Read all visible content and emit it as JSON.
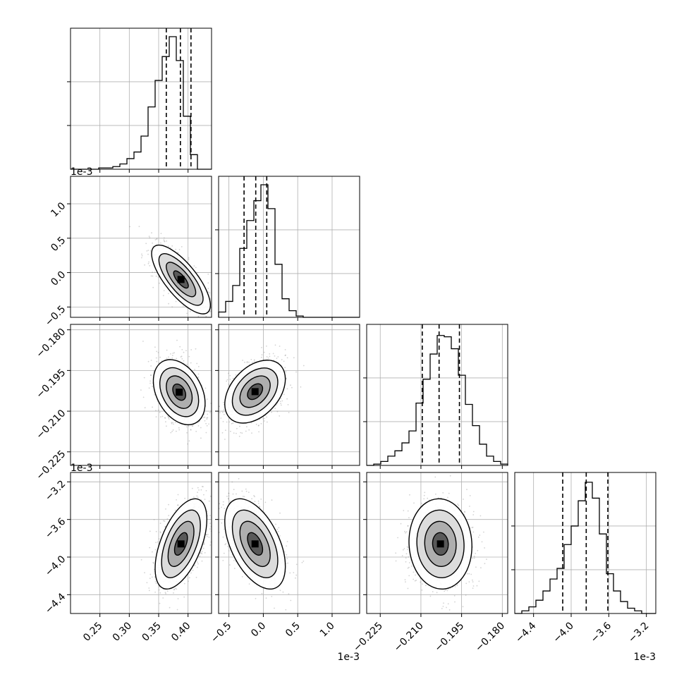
{
  "chart_data": {
    "type": "corner",
    "n_params": 4,
    "axis_offset_labels": [
      "",
      "1e-3",
      "",
      "1e-3"
    ],
    "ranges": [
      [
        0.2,
        0.44
      ],
      [
        -0.65,
        1.4
      ],
      [
        -0.23,
        -0.178
      ],
      [
        -4.6,
        -3.1
      ]
    ],
    "ticks": [
      {
        "values": [
          0.25,
          0.3,
          0.35,
          0.4
        ],
        "labels": [
          "0.25",
          "0.30",
          "0.35",
          "0.40"
        ]
      },
      {
        "values": [
          -0.5,
          0.0,
          0.5,
          1.0
        ],
        "labels": [
          "−0.5",
          "0.0",
          "0.5",
          "1.0"
        ]
      },
      {
        "values": [
          -0.225,
          -0.21,
          -0.195,
          -0.18
        ],
        "labels": [
          "−0.225",
          "−0.210",
          "−0.195",
          "−0.180"
        ]
      },
      {
        "values": [
          -4.4,
          -4.0,
          -3.6,
          -3.2
        ],
        "labels": [
          "−4.4",
          "−4.0",
          "−3.6",
          "−3.2"
        ]
      }
    ],
    "quantiles": [
      [
        0.363,
        0.387,
        0.405
      ],
      [
        -0.28,
        -0.11,
        0.05
      ],
      [
        -0.2095,
        -0.2033,
        -0.1958
      ],
      [
        -4.09,
        -3.84,
        -3.61
      ]
    ],
    "histograms": [
      [
        0,
        0,
        0,
        0,
        0.01,
        0.01,
        0.02,
        0.04,
        0.08,
        0.13,
        0.25,
        0.47,
        0.67,
        0.85,
        1.0,
        0.82,
        0.4,
        0.11,
        0,
        0
      ],
      [
        0.04,
        0.12,
        0.24,
        0.52,
        0.73,
        0.88,
        1.0,
        0.82,
        0.4,
        0.14,
        0.05,
        0.01,
        0,
        0,
        0,
        0,
        0,
        0,
        0,
        0
      ],
      [
        0,
        0.01,
        0.03,
        0.07,
        0.11,
        0.17,
        0.26,
        0.47,
        0.65,
        0.84,
        0.98,
        0.97,
        0.88,
        0.68,
        0.46,
        0.3,
        0.16,
        0.07,
        0.03,
        0.01
      ],
      [
        0,
        0.02,
        0.05,
        0.1,
        0.17,
        0.26,
        0.34,
        0.52,
        0.66,
        0.85,
        0.99,
        0.87,
        0.6,
        0.3,
        0.17,
        0.09,
        0.04,
        0.02,
        0,
        0
      ]
    ],
    "scatter_pairs": [
      {
        "row": 1,
        "col": 0,
        "mean": [
          0.388,
          -0.1
        ],
        "sd": [
          0.025,
          0.25
        ],
        "rho": -0.75
      },
      {
        "row": 2,
        "col": 0,
        "mean": [
          0.385,
          -0.203
        ],
        "sd": [
          0.022,
          0.006
        ],
        "rho": -0.35
      },
      {
        "row": 2,
        "col": 1,
        "mean": [
          -0.12,
          -0.2028
        ],
        "sd": [
          0.22,
          0.0058
        ],
        "rho": 0.4
      },
      {
        "row": 3,
        "col": 0,
        "mean": [
          0.388,
          -3.86
        ],
        "sd": [
          0.022,
          0.24
        ],
        "rho": 0.55
      },
      {
        "row": 3,
        "col": 1,
        "mean": [
          -0.12,
          -3.86
        ],
        "sd": [
          0.22,
          0.24
        ],
        "rho": -0.5
      },
      {
        "row": 3,
        "col": 2,
        "mean": [
          -0.2028,
          -3.86
        ],
        "sd": [
          0.0058,
          0.24
        ],
        "rho": -0.05
      }
    ],
    "grid": true,
    "contour_levels": [
      0.5,
      1.0,
      1.5,
      2.0
    ],
    "colors": {
      "marks": "#000000",
      "grid": "#b0b0b0",
      "points": "#808080"
    }
  }
}
